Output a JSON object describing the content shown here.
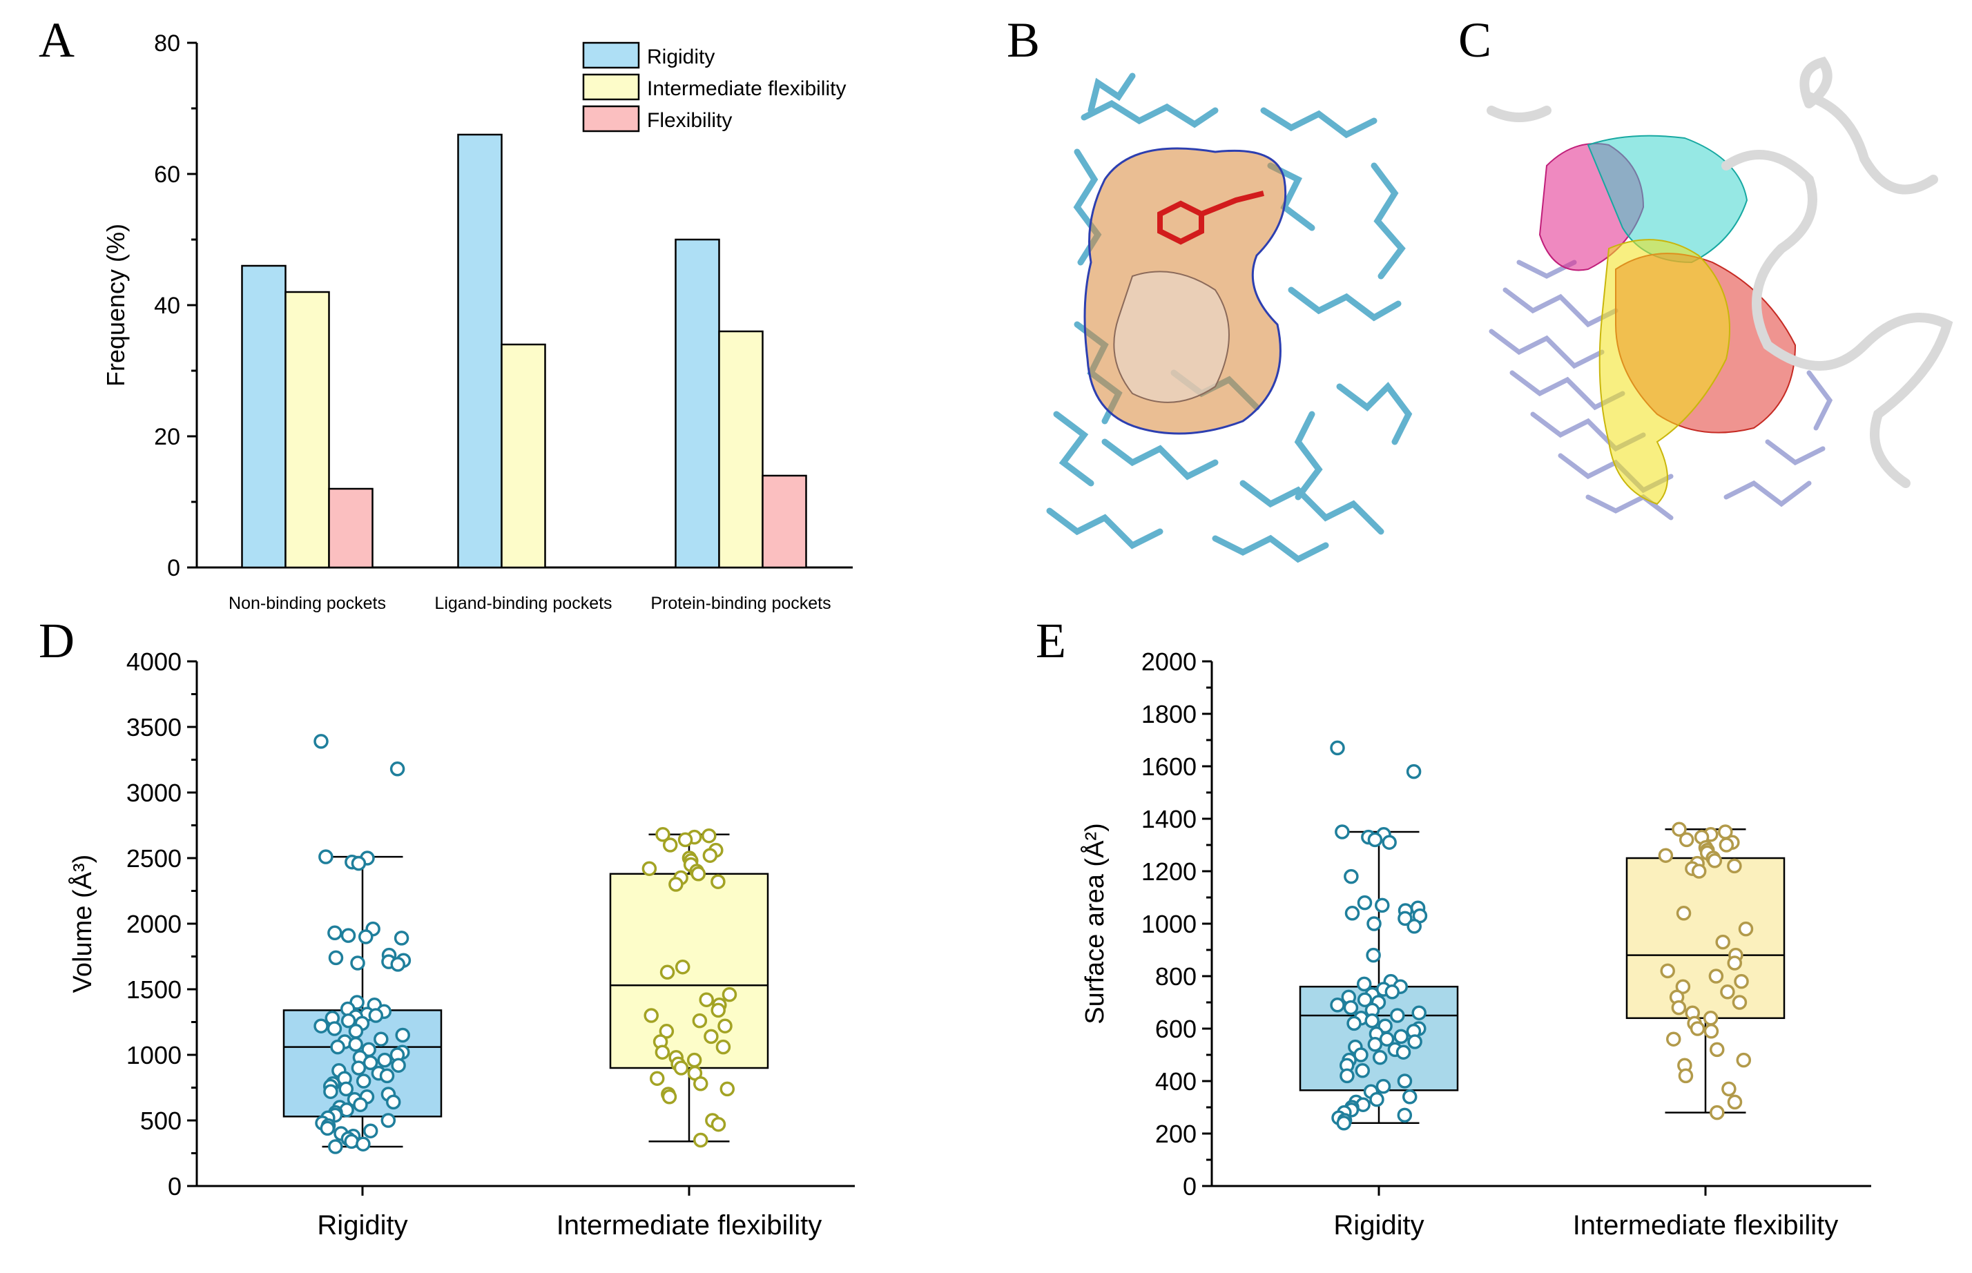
{
  "panels": {
    "a": "A",
    "b": "B",
    "c": "C",
    "d": "D",
    "e": "E"
  },
  "colors": {
    "rigidity_bar": "#aedff5",
    "intermediate_bar": "#fdfcc9",
    "flexibility_bar": "#fbbfc0",
    "d_rigid_box": "#a6d8f1",
    "d_rigid_marker": "#1f7f9c",
    "d_inter_box": "#fdfdc9",
    "d_inter_marker": "#a3a324",
    "e_rigid_box": "#a9d8ea",
    "e_rigid_marker": "#1f7f9c",
    "e_inter_box": "#fbf0bd",
    "e_inter_marker": "#b29a4a",
    "mol_cyan": "#5aaecc",
    "mol_lavender": "#a7acd9",
    "mol_orange": "#d8883a",
    "ribbon": "#d9d9d9"
  },
  "images": {
    "b": "molecular rendering",
    "c": "molecular rendering"
  },
  "chart_data": [
    {
      "panel": "A",
      "type": "bar",
      "ylabel": "Frequency (%)",
      "xlabel": "",
      "ylim": [
        0,
        80
      ],
      "yticks": [
        "0",
        "20",
        "40",
        "60",
        "80"
      ],
      "categories": [
        "Non-binding pockets",
        "Ligand-binding pockets",
        "Protein-binding pockets"
      ],
      "series": [
        {
          "name": "Rigidity",
          "values": [
            46,
            66,
            50
          ]
        },
        {
          "name": "Intermediate flexibility",
          "values": [
            42,
            34,
            36
          ]
        },
        {
          "name": "Flexibility",
          "values": [
            12,
            0,
            14
          ]
        }
      ],
      "legend_position": "top-right",
      "grid": false
    },
    {
      "panel": "D",
      "type": "box",
      "ylabel": "Volume (Å³)",
      "xlabel": "",
      "ylim": [
        0,
        4000
      ],
      "yticks": [
        "0",
        "500",
        "1000",
        "1500",
        "2000",
        "2500",
        "3000",
        "3500",
        "4000"
      ],
      "categories": [
        "Rigidity",
        "Intermediate flexibility"
      ],
      "boxes": [
        {
          "name": "Rigidity",
          "whisker_low": 300,
          "q1": 530,
          "median": 1060,
          "q3": 1340,
          "whisker_high": 2510,
          "points": [
            3390,
            3180,
            2510,
            2500,
            2470,
            2460,
            1960,
            1930,
            1910,
            1900,
            1890,
            1760,
            1740,
            1720,
            1710,
            1700,
            1690,
            1400,
            1380,
            1350,
            1330,
            1310,
            1300,
            1290,
            1280,
            1260,
            1240,
            1220,
            1200,
            1180,
            1150,
            1120,
            1100,
            1080,
            1060,
            1040,
            1020,
            1000,
            980,
            960,
            940,
            920,
            900,
            880,
            860,
            840,
            820,
            800,
            780,
            760,
            740,
            720,
            700,
            680,
            660,
            640,
            620,
            600,
            580,
            560,
            540,
            520,
            500,
            480,
            460,
            440,
            420,
            400,
            380,
            360,
            340,
            320,
            300
          ]
        },
        {
          "name": "Intermediate flexibility",
          "whisker_low": 340,
          "q1": 900,
          "median": 1530,
          "q3": 2380,
          "whisker_high": 2680,
          "points": [
            2680,
            2670,
            2660,
            2640,
            2600,
            2560,
            2520,
            2500,
            2480,
            2450,
            2420,
            2400,
            2380,
            2350,
            2320,
            2300,
            1670,
            1630,
            1460,
            1420,
            1380,
            1340,
            1300,
            1260,
            1220,
            1180,
            1140,
            1100,
            1060,
            1020,
            980,
            960,
            930,
            900,
            860,
            820,
            780,
            740,
            700,
            680,
            500,
            470,
            350
          ]
        }
      ]
    },
    {
      "panel": "E",
      "type": "box",
      "ylabel": "Surface area (Å²)",
      "xlabel": "",
      "ylim": [
        0,
        2000
      ],
      "yticks": [
        "0",
        "200",
        "400",
        "600",
        "800",
        "1000",
        "1200",
        "1400",
        "1600",
        "1800",
        "2000"
      ],
      "categories": [
        "Rigidity",
        "Intermediate flexibility"
      ],
      "boxes": [
        {
          "name": "Rigidity",
          "whisker_low": 240,
          "q1": 365,
          "median": 650,
          "q3": 760,
          "whisker_high": 1350,
          "points": [
            1670,
            1580,
            1350,
            1340,
            1330,
            1320,
            1310,
            1180,
            1080,
            1070,
            1060,
            1050,
            1040,
            1030,
            1020,
            1000,
            990,
            880,
            780,
            770,
            760,
            750,
            740,
            730,
            720,
            710,
            700,
            690,
            680,
            670,
            660,
            650,
            640,
            630,
            620,
            610,
            600,
            590,
            580,
            570,
            560,
            550,
            540,
            530,
            520,
            510,
            500,
            490,
            480,
            460,
            440,
            420,
            400,
            380,
            360,
            340,
            330,
            320,
            310,
            300,
            290,
            280,
            270,
            260,
            250,
            240
          ]
        },
        {
          "name": "Intermediate flexibility",
          "whisker_low": 280,
          "q1": 640,
          "median": 880,
          "q3": 1250,
          "whisker_high": 1360,
          "points": [
            1360,
            1350,
            1340,
            1330,
            1320,
            1310,
            1300,
            1290,
            1280,
            1270,
            1260,
            1250,
            1240,
            1230,
            1220,
            1210,
            1200,
            1040,
            980,
            930,
            880,
            850,
            820,
            800,
            780,
            760,
            740,
            720,
            700,
            680,
            660,
            640,
            620,
            600,
            590,
            560,
            520,
            480,
            460,
            420,
            370,
            320,
            280
          ]
        }
      ]
    }
  ]
}
